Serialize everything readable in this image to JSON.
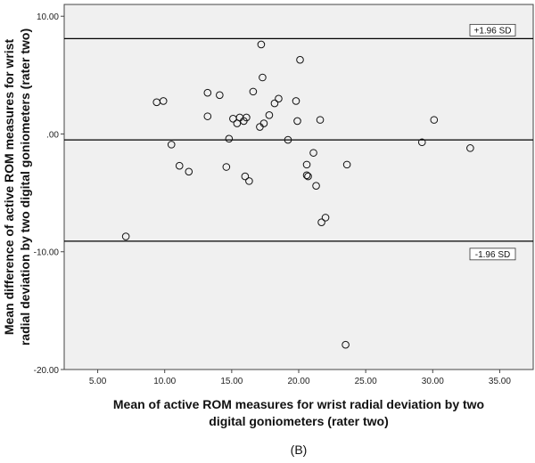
{
  "chart_data": {
    "type": "scatter",
    "xlabel_lines": [
      "Mean of active ROM measures for wrist radial deviation by two",
      "digital goniometers (rater two)"
    ],
    "ylabel_lines": [
      "Mean difference of active ROM measures for wrist",
      "radial deviation by two digital goniometers (rater two)"
    ],
    "xlim": [
      2.5,
      37.5
    ],
    "ylim": [
      -20,
      11
    ],
    "x_ticks": [
      5,
      10,
      15,
      20,
      25,
      30,
      35
    ],
    "y_ticks": [
      10,
      0,
      -10,
      -20
    ],
    "x_tick_labels": [
      "5.00",
      "10.00",
      "15.00",
      "20.00",
      "25.00",
      "30.00",
      "35.00"
    ],
    "y_tick_labels": [
      "10.00",
      ".00",
      "-10.00",
      "-20.00"
    ],
    "reference_lines": [
      {
        "value": 8.1,
        "label": "+1.96 SD"
      },
      {
        "value": -0.5,
        "label": ""
      },
      {
        "value": -9.1,
        "label": "-1.96 SD"
      }
    ],
    "points": [
      [
        7.1,
        -8.7
      ],
      [
        9.4,
        2.7
      ],
      [
        9.9,
        2.8
      ],
      [
        10.5,
        -0.9
      ],
      [
        11.1,
        -2.7
      ],
      [
        11.8,
        -3.2
      ],
      [
        13.2,
        3.5
      ],
      [
        13.2,
        1.5
      ],
      [
        14.1,
        3.3
      ],
      [
        14.6,
        -2.8
      ],
      [
        14.8,
        -0.4
      ],
      [
        15.1,
        1.3
      ],
      [
        15.4,
        0.9
      ],
      [
        15.6,
        1.4
      ],
      [
        15.9,
        1.1
      ],
      [
        16.0,
        -3.6
      ],
      [
        16.1,
        1.4
      ],
      [
        16.3,
        -4.0
      ],
      [
        16.6,
        3.6
      ],
      [
        17.1,
        0.6
      ],
      [
        17.2,
        7.6
      ],
      [
        17.3,
        4.8
      ],
      [
        17.4,
        0.9
      ],
      [
        17.8,
        1.6
      ],
      [
        18.2,
        2.6
      ],
      [
        18.5,
        3.0
      ],
      [
        19.2,
        -0.5
      ],
      [
        19.8,
        2.8
      ],
      [
        19.9,
        1.1
      ],
      [
        20.1,
        6.3
      ],
      [
        20.6,
        -2.6
      ],
      [
        20.6,
        -3.5
      ],
      [
        20.7,
        -3.6
      ],
      [
        21.1,
        -1.6
      ],
      [
        21.3,
        -4.4
      ],
      [
        21.6,
        1.2
      ],
      [
        21.7,
        -7.5
      ],
      [
        22.0,
        -7.1
      ],
      [
        23.5,
        -17.9
      ],
      [
        23.6,
        -2.6
      ],
      [
        29.2,
        -0.7
      ],
      [
        30.1,
        1.2
      ],
      [
        32.8,
        -1.2
      ]
    ]
  },
  "caption": "(B)"
}
